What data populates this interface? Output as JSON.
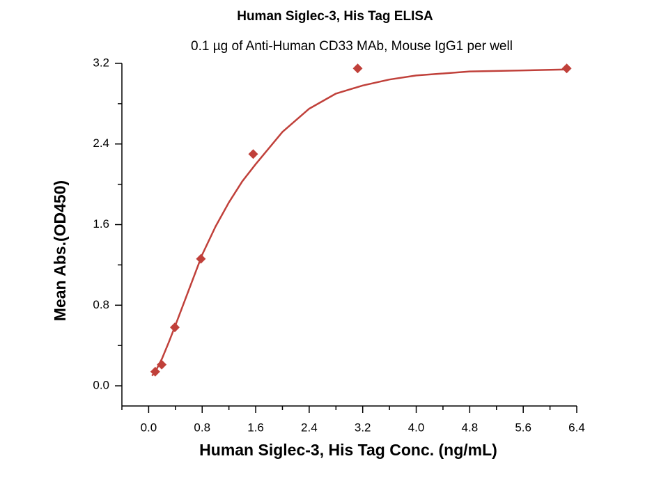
{
  "chart_data": {
    "type": "scatter",
    "title": "Human Siglec-3, His Tag ELISA",
    "subtitle": "0.1 µg of Anti-Human CD33 MAb, Mouse IgG1 per well",
    "x_label": "Human Siglec-3, His Tag Conc. (ng/mL)",
    "y_label": "Mean Abs.(OD450)",
    "x": [
      0.098,
      0.195,
      0.391,
      0.781,
      1.563,
      3.125,
      6.25
    ],
    "values": [
      0.14,
      0.21,
      0.58,
      1.26,
      2.3,
      3.15,
      3.15
    ],
    "color": "#c0403a",
    "fit": {
      "x": [
        0.05,
        0.1,
        0.2,
        0.3,
        0.4,
        0.6,
        0.8,
        1.0,
        1.2,
        1.4,
        1.6,
        2.0,
        2.4,
        2.8,
        3.2,
        3.6,
        4.0,
        4.8,
        5.6,
        6.25
      ],
      "values": [
        0.1,
        0.14,
        0.27,
        0.43,
        0.6,
        0.95,
        1.3,
        1.58,
        1.82,
        2.03,
        2.2,
        2.52,
        2.75,
        2.9,
        2.98,
        3.04,
        3.08,
        3.12,
        3.13,
        3.14
      ]
    },
    "xlim": [
      -0.4,
      6.4
    ],
    "ylim": [
      -0.2,
      3.2
    ],
    "xticks": [
      {
        "value": 0,
        "label": "0.0"
      },
      {
        "value": 0.8,
        "label": "0.8"
      },
      {
        "value": 1.6,
        "label": "1.6"
      },
      {
        "value": 2.4,
        "label": "2.4"
      },
      {
        "value": 3.2,
        "label": "3.2"
      },
      {
        "value": 4,
        "label": "4.0"
      },
      {
        "value": 4.8,
        "label": "4.8"
      },
      {
        "value": 5.6,
        "label": "5.6"
      },
      {
        "value": 6.4,
        "label": "6.4"
      }
    ],
    "yticks": [
      {
        "value": 0,
        "label": "0.0"
      },
      0.8,
      1.6,
      2.4,
      3.2
    ],
    "xminorticks": [
      -0.4,
      0.4,
      1.2,
      2,
      2.8,
      3.6,
      4.4,
      5.2,
      6
    ],
    "yminorticks": [
      0.4,
      1.2,
      2,
      2.8
    ]
  }
}
